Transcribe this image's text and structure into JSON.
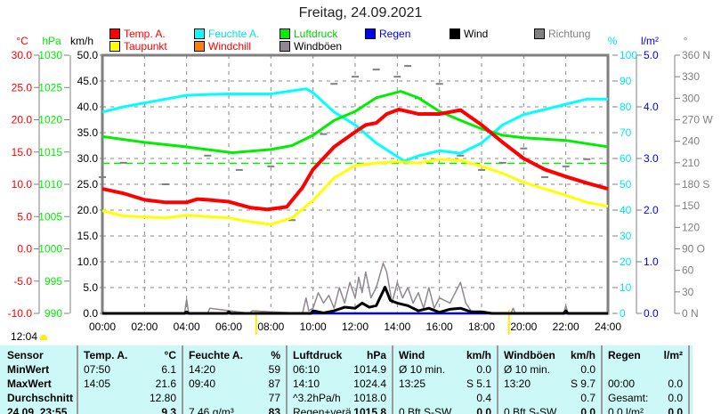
{
  "title": "Freitag, 24.09.2021",
  "legend": [
    {
      "label": "Temp. A.",
      "color": "#ff0000",
      "text_color": "#ff0000"
    },
    {
      "label": "Feuchte A.",
      "color": "#00ffff",
      "text_color": "#00e0e0"
    },
    {
      "label": "Luftdruck",
      "color": "#00ee00",
      "text_color": "#00cc00"
    },
    {
      "label": "Regen",
      "color": "#0000ff",
      "text_color": "#0000ff"
    },
    {
      "label": "Wind",
      "color": "#000000",
      "text_color": "#000000"
    },
    {
      "label": "Richtung",
      "color": "#808080",
      "text_color": "#808080"
    },
    {
      "label": "Taupunkt",
      "color": "#ffff00",
      "text_color": "#ff0000"
    },
    {
      "label": "Windchill",
      "color": "#ff8000",
      "text_color": "#ff0000"
    },
    {
      "label": "Windböen",
      "color": "#908890",
      "text_color": "#000000"
    }
  ],
  "chart_data": {
    "type": "line",
    "title": "Freitag, 24.09.2021",
    "x_ticks": [
      "00:00",
      "02:00",
      "04:00",
      "06:00",
      "08:00",
      "10:00",
      "12:00",
      "14:00",
      "16:00",
      "18:00",
      "20:00",
      "22:00",
      "24:00"
    ],
    "xlim": [
      0,
      24
    ],
    "grid": true,
    "axes": [
      {
        "unit": "°C",
        "range": [
          -10,
          30
        ],
        "ticks": [
          "30.0",
          "25.0",
          "20.0",
          "15.0",
          "10.0",
          "5.0",
          "0.0",
          "-5.0",
          "-10.0"
        ],
        "color": "#ff0000"
      },
      {
        "unit": "hPa",
        "range": [
          990,
          1030
        ],
        "ticks": [
          "1030",
          "1025",
          "1020",
          "1015",
          "1010",
          "1005",
          "1000",
          "995",
          "990"
        ],
        "color": "#00ee00"
      },
      {
        "unit": "km/h",
        "range": [
          0,
          50
        ],
        "ticks": [
          "50.0",
          "45.0",
          "40.0",
          "35.0",
          "30.0",
          "25.0",
          "20.0",
          "15.0",
          "10.0",
          "5.0",
          "0.0"
        ],
        "color": "#000000"
      },
      {
        "unit": "%",
        "range": [
          0,
          100
        ],
        "ticks": [
          "100",
          "90",
          "80",
          "70",
          "60",
          "50",
          "40",
          "30",
          "20",
          "10",
          "0"
        ],
        "color": "#00e8e8"
      },
      {
        "unit": "l/m²",
        "range": [
          0,
          5
        ],
        "ticks": [
          "5.0",
          "4.0",
          "3.0",
          "2.0",
          "1.0",
          "0.0"
        ],
        "color": "#0000ff"
      },
      {
        "unit": "°",
        "range": [
          0,
          360
        ],
        "ticks": [
          "360 N",
          "330",
          "300",
          "270 W",
          "240",
          "210",
          "180 S",
          "150",
          "120",
          "90  O",
          "60",
          "30",
          "0    N"
        ],
        "color": "#808080"
      }
    ],
    "reference_line": {
      "axis": "hPa",
      "value": 1013.25,
      "color": "#00ee00"
    },
    "series": [
      {
        "name": "Temp. A.",
        "axis": "°C",
        "color": "#ff0000",
        "x": [
          0,
          1,
          2,
          3,
          4,
          4.5,
          5,
          6,
          7,
          7.83,
          8.75,
          9.5,
          10,
          11,
          12,
          12.5,
          13,
          13.5,
          14.08,
          15,
          16,
          17,
          18,
          19,
          20,
          21,
          22,
          23,
          24
        ],
        "y": [
          9.3,
          8.6,
          7.6,
          7.2,
          7.2,
          7.7,
          7.6,
          7.3,
          6.4,
          6.1,
          6.5,
          9.5,
          12.3,
          15.8,
          18.1,
          19.2,
          19.5,
          20.9,
          21.6,
          20.9,
          20.9,
          21.5,
          19.2,
          16.5,
          14.0,
          12.3,
          11.2,
          10.2,
          9.3
        ]
      },
      {
        "name": "Taupunkt",
        "axis": "°C",
        "color": "#ffff00",
        "x": [
          0,
          1,
          3,
          4,
          6,
          7,
          8,
          9,
          10,
          11,
          12,
          13,
          14,
          15,
          16,
          17,
          18,
          19,
          20,
          21,
          22,
          23,
          24
        ],
        "y": [
          5.9,
          5.1,
          4.8,
          5.2,
          4.8,
          4.2,
          3.8,
          4.8,
          7.5,
          11.0,
          12.9,
          13.3,
          13.5,
          13.3,
          13.9,
          13.7,
          12.8,
          11.7,
          10.3,
          9.3,
          8.3,
          7.2,
          6.6
        ]
      },
      {
        "name": "Feuchte A.",
        "axis": "%",
        "color": "#00ffff",
        "x": [
          0,
          1,
          3,
          4,
          6,
          8,
          9.67,
          10,
          11,
          12,
          13,
          14.33,
          15,
          16,
          17,
          18,
          19,
          20,
          21,
          22,
          23,
          24
        ],
        "y": [
          78,
          80,
          83,
          84.5,
          85,
          85,
          87,
          85.5,
          78,
          73,
          66,
          59,
          61,
          63,
          62,
          66,
          73,
          77,
          79,
          81,
          83,
          83
        ]
      },
      {
        "name": "Luftdruck",
        "axis": "hPa",
        "color": "#00ee00",
        "x": [
          0,
          2,
          4,
          6.17,
          8,
          9,
          10,
          11,
          12,
          13,
          14.17,
          15,
          16,
          17,
          18,
          19,
          20,
          22,
          24
        ],
        "y": [
          1017.4,
          1016.5,
          1015.8,
          1014.9,
          1015.4,
          1016.0,
          1017.6,
          1019.9,
          1021.3,
          1023.4,
          1024.4,
          1023.4,
          1021.3,
          1019.9,
          1018.6,
          1017.6,
          1017.2,
          1016.8,
          1015.8
        ]
      },
      {
        "name": "Regen",
        "axis": "l/m²",
        "color": "#0000ff",
        "x": [
          0,
          24
        ],
        "y": [
          0,
          0
        ]
      },
      {
        "name": "Windböen",
        "axis": "km/h",
        "color": "#908890",
        "x": [
          0,
          3.9,
          4,
          4.1,
          5,
          5.1,
          7,
          7.1,
          9.5,
          9.67,
          9.8,
          10,
          10.25,
          10.5,
          10.75,
          11,
          11.25,
          11.5,
          11.75,
          12,
          12.17,
          12.33,
          12.5,
          12.75,
          13,
          13.33,
          13.5,
          13.75,
          14,
          14.25,
          14.5,
          14.75,
          15,
          15.25,
          15.5,
          15.75,
          16,
          16.5,
          16.75,
          17,
          17.25,
          17.5,
          18,
          19.4,
          19.5,
          19.6,
          21.9,
          22,
          22.1,
          24
        ],
        "y": [
          0,
          0,
          2.7,
          0,
          0,
          1,
          0,
          0.5,
          0,
          3,
          0.5,
          1,
          4,
          2,
          3.5,
          1,
          5,
          2,
          6,
          3,
          7,
          4,
          8,
          3,
          5,
          9.7,
          8,
          2,
          6,
          3,
          5,
          2,
          4,
          1,
          5,
          1,
          3,
          2,
          4,
          6,
          2,
          0.5,
          0,
          0,
          1,
          0,
          0,
          1.5,
          0,
          0
        ]
      },
      {
        "name": "Wind",
        "axis": "km/h",
        "color": "#000000",
        "x": [
          0,
          3.9,
          4,
          4.1,
          5.9,
          6,
          6.1,
          9.9,
          10,
          10.5,
          11,
          11.5,
          12,
          12.33,
          12.67,
          13,
          13.42,
          13.67,
          14,
          14.5,
          15,
          15.5,
          16,
          16.5,
          17,
          17.5,
          18,
          18.5,
          21.9,
          22,
          22.1,
          24
        ],
        "y": [
          0,
          0,
          0.3,
          0,
          0,
          0.3,
          0,
          0,
          0.5,
          0.1,
          0.5,
          1.2,
          1.0,
          2.0,
          1.2,
          1.5,
          5.1,
          2.5,
          2.0,
          1.5,
          0.5,
          1.0,
          0.2,
          0.8,
          1.0,
          0.3,
          0.3,
          0,
          0,
          0.5,
          0,
          0
        ]
      },
      {
        "name": "Richtung",
        "axis": "°",
        "color": "#808080",
        "x": [
          0,
          1,
          3,
          5,
          6.5,
          8,
          9,
          10.5,
          11,
          12,
          13,
          14,
          14.5,
          15,
          16,
          17,
          18,
          19,
          20,
          21,
          22,
          23
        ],
        "y": [
          190,
          210,
          180,
          220,
          200,
          205,
          130,
          250,
          320,
          330,
          340,
          330,
          345,
          300,
          320,
          220,
          200,
          210,
          230,
          190,
          205,
          215
        ]
      }
    ]
  },
  "time_marker": "12:04",
  "table": {
    "columns": [
      {
        "title": "Sensor",
        "unit": "",
        "rows": [
          {
            "l": "MinWert"
          },
          {
            "l": "MaxWert"
          },
          {
            "l": "Durchschnitt"
          },
          {
            "l": "24.09. 23:55"
          }
        ]
      },
      {
        "title": "Temp. A.",
        "unit": "°C",
        "rows": [
          {
            "l": "07:50",
            "v": "6.1"
          },
          {
            "l": "14:05",
            "v": "21.6"
          },
          {
            "l": "",
            "v": "12.80"
          },
          {
            "l": "",
            "v": "9.3"
          }
        ]
      },
      {
        "title": "Feuchte A.",
        "unit": "%",
        "rows": [
          {
            "l": "14:20",
            "v": "59"
          },
          {
            "l": "09:40",
            "v": "87"
          },
          {
            "l": "",
            "v": "77"
          },
          {
            "l": "7.46 g/m³",
            "v": "83"
          }
        ]
      },
      {
        "title": "Luftdruck",
        "unit": "hPa",
        "rows": [
          {
            "l": "06:10",
            "v": "1014.9"
          },
          {
            "l": "14:10",
            "v": "1024.4"
          },
          {
            "l": "^3.2hPa/h",
            "v": "1018.0"
          },
          {
            "l": "Regen+verä",
            "v": "1015.8"
          }
        ]
      },
      {
        "title": "Wind",
        "unit": "km/h",
        "rows": [
          {
            "l": "Ø 10 min.",
            "v": "0.0"
          },
          {
            "l": "13:25",
            "v": "S 5.1"
          },
          {
            "l": "",
            "v": "0.4"
          },
          {
            "l": "0 Bft S-SW",
            "v": "0.0"
          }
        ]
      },
      {
        "title": "Windböen",
        "unit": "km/h",
        "rows": [
          {
            "l": "Ø 10 min.",
            "v": "0.0"
          },
          {
            "l": "13:20",
            "v": "S 9.7"
          },
          {
            "l": "",
            "v": "0.7"
          },
          {
            "l": "0 Bft S-SW",
            "v": "0.0"
          }
        ]
      },
      {
        "title": "Regen",
        "unit": "l/m²",
        "rows": [
          {
            "l": "",
            "v": ""
          },
          {
            "l": "00:00",
            "v": "0.0"
          },
          {
            "l": "Gesamt:",
            "v": "0.0"
          },
          {
            "l": "0.0 l/m²",
            "v": "0.0"
          }
        ]
      }
    ]
  }
}
